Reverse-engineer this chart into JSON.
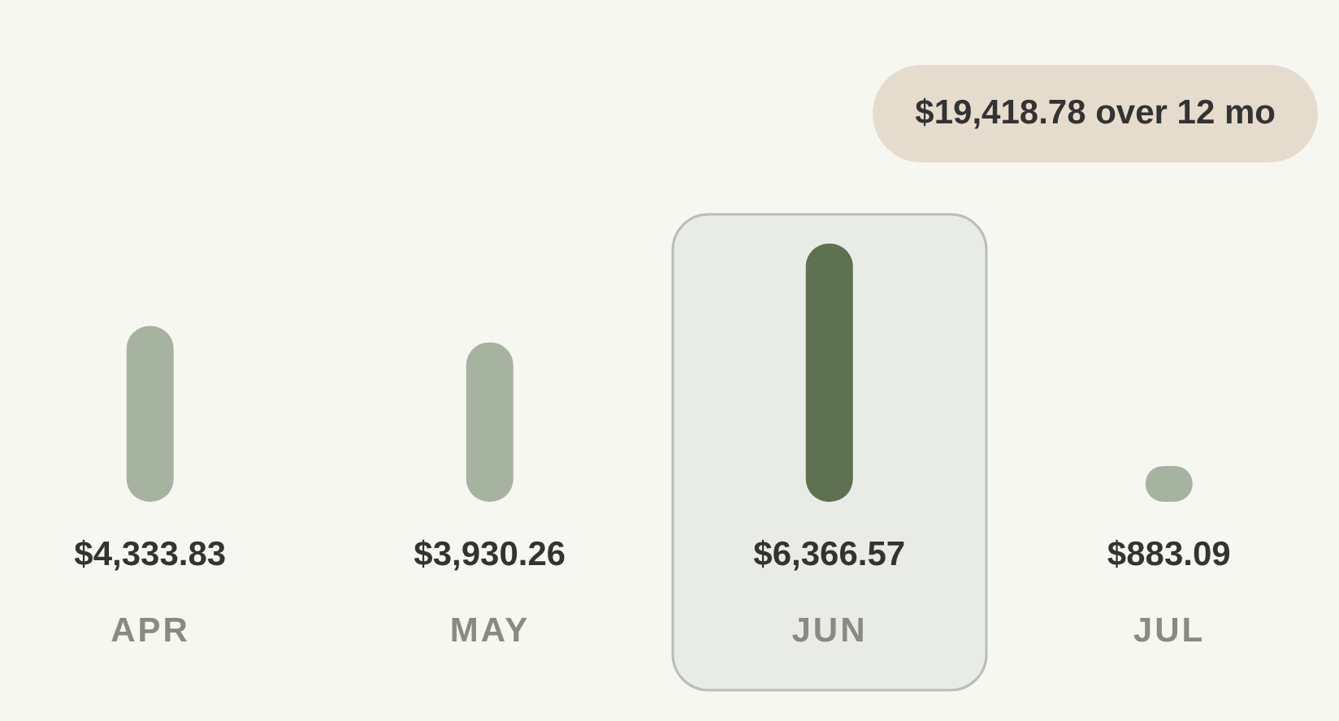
{
  "chart_data": {
    "type": "bar",
    "categories": [
      "APR",
      "MAY",
      "JUN",
      "JUL"
    ],
    "values": [
      4333.83,
      3930.26,
      6366.57,
      883.09
    ],
    "colors": [
      "#a6b3a0",
      "#a6b3a0",
      "#5e7150",
      "#a6b3a0"
    ],
    "value_labels": [
      "$4,333.83",
      "$3,930.26",
      "$6,366.57",
      "$883.09"
    ],
    "bands": [
      {
        "axis": "x",
        "from": "JUN",
        "to": "JUN",
        "color": "#e9ece6"
      }
    ],
    "annotations": [
      "$19,418.78 over 12 mo"
    ]
  }
}
